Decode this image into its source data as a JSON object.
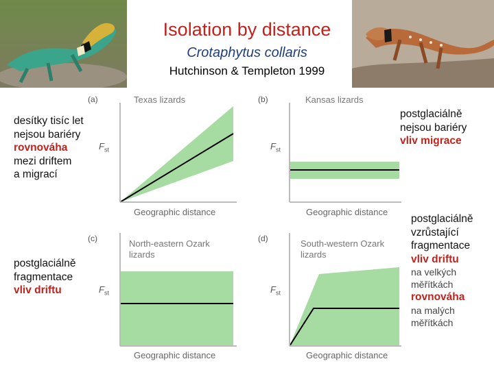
{
  "title": "Isolation by distance",
  "species": "Crotaphytus collaris",
  "citation": "Hutchinson & Templeton 1999",
  "colors": {
    "title": "#c0221c",
    "species": "#1f3f7a",
    "band": "#a6dca2",
    "emphasis": "#c0221c"
  },
  "photos": {
    "left": "collared-lizard-photo",
    "right": "collared-lizard-photo-2"
  },
  "notes": {
    "a": {
      "line1": "desítky tisíc let",
      "line2": "nejsou bariéry",
      "line3": "rovnováha",
      "line4": "mezi driftem",
      "line5": "a migrací"
    },
    "b": {
      "line1": "postglaciálně",
      "line2": "nejsou bariéry",
      "line3": "vliv migrace"
    },
    "c": {
      "line1": "postglaciálně",
      "line2": "fragmentace",
      "line3": "vliv driftu"
    },
    "d": {
      "line1": "postglaciálně",
      "line2": "vzrůstající",
      "line3": "fragmentace",
      "line4": "vliv driftu",
      "line5": "na velkých",
      "line6": "měřítkách",
      "line7": "rovnováha",
      "line8": "na malých",
      "line9": "měřítkách"
    }
  },
  "chart_data": [
    {
      "type": "area",
      "panel": "(a)",
      "title": "Texas lizards",
      "xlabel": "Geographic distance",
      "ylabel": "F",
      "ylabel_sub": "st",
      "pattern": "linear increase from origin, widening band"
    },
    {
      "type": "area",
      "panel": "(b)",
      "title": "Kansas lizards",
      "xlabel": "Geographic distance",
      "ylabel": "F",
      "ylabel_sub": "st",
      "pattern": "flat low constant band"
    },
    {
      "type": "area",
      "panel": "(c)",
      "title_line1": "North-eastern Ozark",
      "title_line2": "lizards",
      "xlabel": "Geographic distance",
      "ylabel": "F",
      "ylabel_sub": "st",
      "pattern": "flat high constant, wide band"
    },
    {
      "type": "area",
      "panel": "(d)",
      "title_line1": "South-western Ozark",
      "title_line2": "lizards",
      "xlabel": "Geographic distance",
      "ylabel": "F",
      "ylabel_sub": "st",
      "pattern": "increase then plateau"
    }
  ]
}
